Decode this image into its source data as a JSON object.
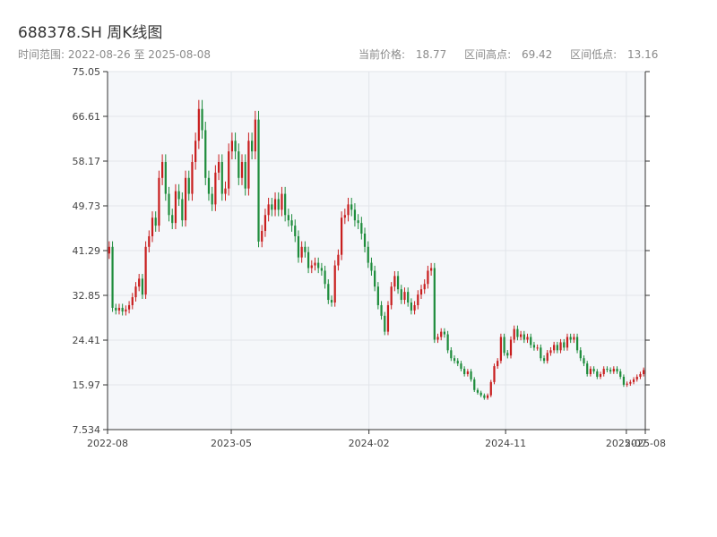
{
  "header": {
    "title": "688378.SH 周K线图",
    "date_range_prefix": "时间范围:",
    "date_start": "2022-08-26",
    "date_sep": "至",
    "date_end": "2025-08-08"
  },
  "stats": {
    "current_label": "当前价格:",
    "current_value": "18.77",
    "high_label": "区间高点:",
    "high_value": "69.42",
    "low_label": "区间低点:",
    "low_value": "13.16"
  },
  "colors": {
    "up": "#c81e1e",
    "down": "#1e8c3c",
    "plot_bg": "#f5f7fa",
    "grid": "#e2e5ea",
    "axis": "#333333"
  },
  "chart_data": {
    "type": "candlestick",
    "title": "688378.SH 周K线图",
    "y_ticks": [
      "75.05",
      "66.61",
      "58.17",
      "49.73",
      "41.29",
      "32.85",
      "24.41",
      "15.97",
      "7.534"
    ],
    "ylim": [
      7.534,
      75.05
    ],
    "x_ticks": [
      {
        "label": "2022-08",
        "date": "2022-08-26"
      },
      {
        "label": "2023-05",
        "date": "2023-05-01"
      },
      {
        "label": "2024-02",
        "date": "2024-02-01"
      },
      {
        "label": "2024-11",
        "date": "2024-11-01"
      },
      {
        "label": "2025-07",
        "date": "2025-07-01"
      },
      {
        "label": "2025-08",
        "date": "2025-08-08"
      }
    ],
    "xlim": [
      "2022-08-26",
      "2025-08-08"
    ],
    "grid": true,
    "closes": [
      42.0,
      30.5,
      30.0,
      30.5,
      29.8,
      30.2,
      31.0,
      32.5,
      34.5,
      36.0,
      33.0,
      42.0,
      44.0,
      47.5,
      46.0,
      55.0,
      58.0,
      52.0,
      48.0,
      46.5,
      52.5,
      51.0,
      47.0,
      55.0,
      52.0,
      58.0,
      62.0,
      68.0,
      64.0,
      55.0,
      52.0,
      50.0,
      56.0,
      58.0,
      52.0,
      53.0,
      60.0,
      62.0,
      60.0,
      55.0,
      58.0,
      53.0,
      62.0,
      60.0,
      66.0,
      43.0,
      45.0,
      48.0,
      50.0,
      49.0,
      51.0,
      49.0,
      52.0,
      48.0,
      47.0,
      46.0,
      44.0,
      40.0,
      42.0,
      41.0,
      38.0,
      38.5,
      39.0,
      38.0,
      37.5,
      35.0,
      32.0,
      31.5,
      38.5,
      40.5,
      47.5,
      48.0,
      50.0,
      49.0,
      47.0,
      46.5,
      44.5,
      42.0,
      39.0,
      37.5,
      34.5,
      31.0,
      29.0,
      26.0,
      31.0,
      34.5,
      36.5,
      34.0,
      32.0,
      33.5,
      31.5,
      30.0,
      31.0,
      33.0,
      34.0,
      35.0,
      37.5,
      38.0,
      24.5,
      25.0,
      26.0,
      25.5,
      22.5,
      21.0,
      20.5,
      20.0,
      19.0,
      18.0,
      18.5,
      17.0,
      15.0,
      14.5,
      14.0,
      13.5,
      14.0,
      16.5,
      19.5,
      20.5,
      25.0,
      22.0,
      21.5,
      24.5,
      26.5,
      25.0,
      25.5,
      24.5,
      25.0,
      23.5,
      23.0,
      23.0,
      21.0,
      20.5,
      22.0,
      22.5,
      23.5,
      22.5,
      24.0,
      23.0,
      25.0,
      24.5,
      25.0,
      22.5,
      21.0,
      20.0,
      18.0,
      19.0,
      18.5,
      17.5,
      18.0,
      19.0,
      18.8,
      18.5,
      19.0,
      18.5,
      17.5,
      16.0,
      16.2,
      16.5,
      17.0,
      17.5,
      18.0,
      18.77
    ]
  }
}
